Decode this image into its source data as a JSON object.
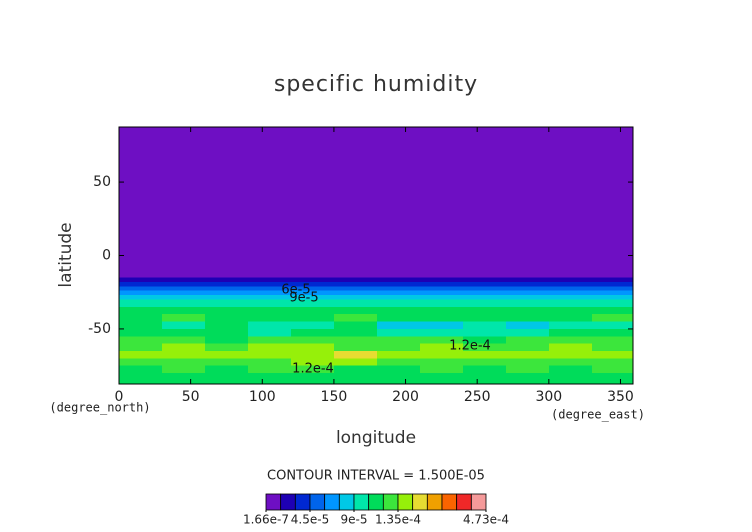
{
  "chart_data": {
    "type": "contour",
    "title": "specific humidity",
    "xlabel": "longitude",
    "ylabel": "latitude",
    "xunit": "(degree_east)",
    "yunit": "(degree_north)",
    "note": "CONTOUR INTERVAL = 1.500E-05",
    "xlim": [
      0,
      358.75
    ],
    "ylim": [
      -87.5,
      87.5
    ],
    "xticks": [
      0,
      50,
      100,
      150,
      200,
      250,
      300,
      350
    ],
    "yticks": [
      -50,
      0,
      50
    ],
    "x_edges": [
      0,
      30,
      60,
      90,
      120,
      150,
      180,
      210,
      240,
      270,
      300,
      330,
      358.75
    ],
    "y_edges": [
      87.5,
      30,
      -10,
      -15,
      -18,
      -21,
      -24,
      -27,
      -30,
      -35,
      -40,
      -45,
      -50,
      -55,
      -60,
      -65,
      -70,
      -75,
      -80,
      -87.5
    ],
    "z": [
      [
        5e-06,
        5e-06,
        5e-06,
        5e-06,
        5e-06,
        5e-06,
        5e-06,
        5e-06,
        5e-06,
        5e-06,
        5e-06,
        5e-06
      ],
      [
        6e-06,
        6e-06,
        6e-06,
        6e-06,
        6e-06,
        6e-06,
        6e-06,
        6e-06,
        6e-06,
        6e-06,
        6e-06,
        6e-06
      ],
      [
        9e-06,
        9e-06,
        9e-06,
        9e-06,
        9e-06,
        9e-06,
        9e-06,
        9e-06,
        9e-06,
        9e-06,
        9e-06,
        9e-06
      ],
      [
        2.2e-05,
        2.2e-05,
        2.2e-05,
        2.2e-05,
        2.2e-05,
        2.2e-05,
        2.2e-05,
        2.2e-05,
        2.2e-05,
        2.2e-05,
        2.2e-05,
        2.2e-05
      ],
      [
        3.6e-05,
        3.6e-05,
        3.6e-05,
        3.6e-05,
        3.6e-05,
        3.6e-05,
        3.6e-05,
        3.6e-05,
        3.6e-05,
        3.6e-05,
        3.6e-05,
        3.6e-05
      ],
      [
        5.2e-05,
        5.2e-05,
        5.2e-05,
        5.2e-05,
        5.2e-05,
        5.2e-05,
        5.2e-05,
        5.2e-05,
        5.2e-05,
        5.2e-05,
        5.2e-05,
        5.2e-05
      ],
      [
        6.8e-05,
        6.8e-05,
        6.8e-05,
        6.8e-05,
        6.8e-05,
        6.8e-05,
        6.8e-05,
        6.8e-05,
        6.8e-05,
        6.8e-05,
        6.8e-05,
        6.8e-05
      ],
      [
        8.2e-05,
        8.2e-05,
        8.2e-05,
        8.2e-05,
        8.2e-05,
        8.2e-05,
        8.2e-05,
        8.2e-05,
        8.2e-05,
        8.2e-05,
        8.2e-05,
        8.2e-05
      ],
      [
        9.6e-05,
        0.0001,
        9.6e-05,
        9.6e-05,
        0.0001,
        9.6e-05,
        9.6e-05,
        0.0001,
        9.6e-05,
        9.6e-05,
        0.0001,
        9.6e-05
      ],
      [
        0.00011,
        0.000108,
        0.000112,
        0.000106,
        0.00011,
        0.000113,
        0.000107,
        0.00011,
        0.000109,
        0.000112,
        0.000105,
        0.00011
      ],
      [
        0.000115,
        0.000122,
        0.00011,
        0.000118,
        0.000112,
        0.00012,
        0.000116,
        0.00011,
        0.000114,
        0.000119,
        0.000112,
        0.000121
      ],
      [
        0.000105,
        0.0001,
        0.000108,
        9.5e-05,
        0.000102,
        0.000106,
        8.8e-05,
        8.6e-05,
        9.2e-05,
        8.4e-05,
        0.0001,
        0.000104
      ],
      [
        0.00011,
        0.000106,
        0.000112,
        0.000104,
        0.000108,
        0.00011,
        9.8e-05,
        0.000102,
        9.6e-05,
        0.0001,
        0.000108,
        0.00011
      ],
      [
        0.00012,
        0.000125,
        0.000118,
        0.000122,
        0.000128,
        0.00012,
        0.000124,
        0.000126,
        0.000119,
        0.000123,
        0.000121,
        0.000125
      ],
      [
        0.000132,
        0.000138,
        0.00013,
        0.000136,
        0.00014,
        0.000134,
        0.000128,
        0.000137,
        0.000133,
        0.000131,
        0.000136,
        0.00013
      ],
      [
        0.000142,
        0.000138,
        0.000146,
        0.00014,
        0.000144,
        0.000152,
        0.000136,
        0.000143,
        0.000139,
        0.000141,
        0.000137,
        0.000145
      ],
      [
        0.00013,
        0.000128,
        0.000133,
        0.000126,
        0.000135,
        0.000138,
        0.000125,
        0.00013,
        0.000127,
        0.000132,
        0.000124,
        0.000129
      ],
      [
        0.000118,
        0.000122,
        0.000115,
        0.00012,
        0.000124,
        0.000119,
        0.000116,
        0.000121,
        0.000117,
        0.00012,
        0.000114,
        0.000122
      ],
      [
        0.000112,
        0.00011,
        0.000115,
        0.000108,
        0.000113,
        0.00011,
        0.000106,
        0.000112,
        0.000109,
        0.000111,
        0.000107,
        0.000113
      ]
    ],
    "colorbar": {
      "levels": [
        1.66e-07,
        1.5e-05,
        3e-05,
        4.5e-05,
        6e-05,
        7.5e-05,
        9e-05,
        0.000105,
        0.00012,
        0.000135,
        0.00015,
        0.000165,
        0.00018,
        0.000195,
        0.00021,
        0.000473
      ],
      "colors": [
        "#6e0fc3",
        "#1e00b4",
        "#0028d2",
        "#0064eb",
        "#0096ff",
        "#00c8e6",
        "#00e6aa",
        "#00dc5a",
        "#3ce63c",
        "#96f00a",
        "#e6dc32",
        "#f0a000",
        "#fa6400",
        "#f02828",
        "#f59a9a"
      ],
      "ticks": [
        {
          "value": 1.66e-07,
          "label": "1.66e-7"
        },
        {
          "value": 4.5e-05,
          "label": "4.5e-5"
        },
        {
          "value": 9e-05,
          "label": "9e-5"
        },
        {
          "value": 0.000135,
          "label": "1.35e-4"
        },
        {
          "value": 0.000473,
          "label": "4.73e-4"
        }
      ]
    },
    "annotations": [
      "6e-5",
      "9e-5",
      "1.2e-4",
      "1.2e-4"
    ]
  }
}
